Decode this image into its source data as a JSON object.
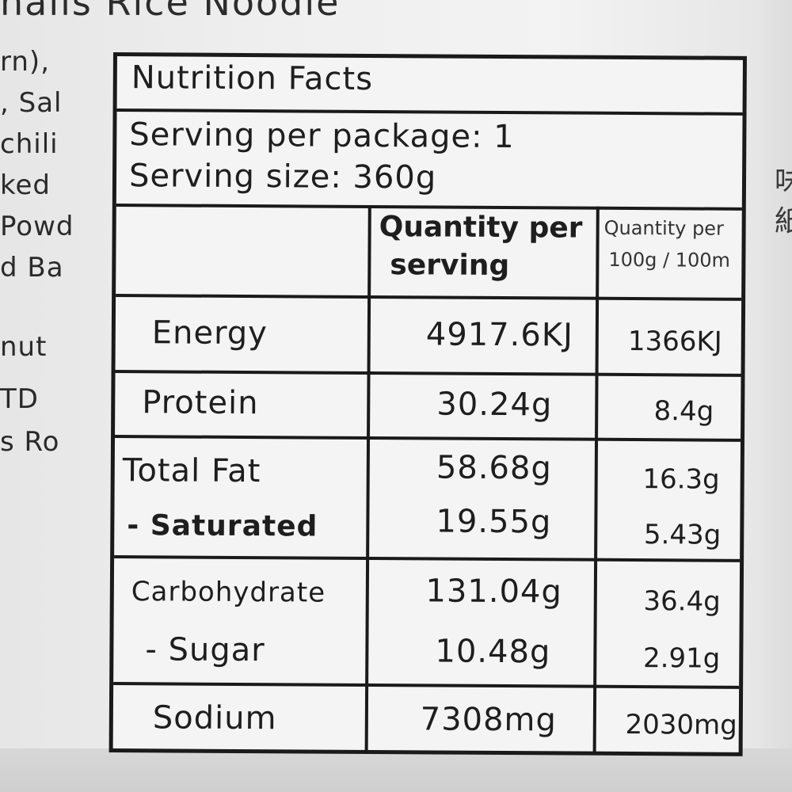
{
  "background_text": {
    "top": "hails Rice Noodle",
    "left_lines": [
      "rn),",
      ", Sal",
      "chili",
      "ked",
      "Powd",
      "d Ba",
      "",
      "nut",
      "TD",
      "s Ro"
    ],
    "right_lines": [
      "味",
      "紙"
    ]
  },
  "label": {
    "title": "Nutrition Facts",
    "serving_per_package": "Serving per package: 1",
    "serving_size": "Serving size: 360g",
    "header": {
      "col1_line1": "Quantity per",
      "col1_line2": "serving",
      "col2_line1": "Quantity per",
      "col2_line2": "100g / 100m"
    },
    "rows": [
      {
        "name": "Energy",
        "per_serving": "4917.6KJ",
        "per_100": "1366KJ"
      },
      {
        "name": "Protein",
        "per_serving": "30.24g",
        "per_100": "8.4g"
      },
      {
        "name": "Total Fat",
        "per_serving": "58.68g",
        "per_100": "16.3g"
      },
      {
        "name": "- Saturated",
        "per_serving": "19.55g",
        "per_100": "5.43g"
      },
      {
        "name": "Carbohydrate",
        "per_serving": "131.04g",
        "per_100": "36.4g"
      },
      {
        "name": "- Sugar",
        "per_serving": "10.48g",
        "per_100": "2.91g"
      },
      {
        "name": "Sodium",
        "per_serving": "7308mg",
        "per_100": "2030mg"
      }
    ]
  }
}
